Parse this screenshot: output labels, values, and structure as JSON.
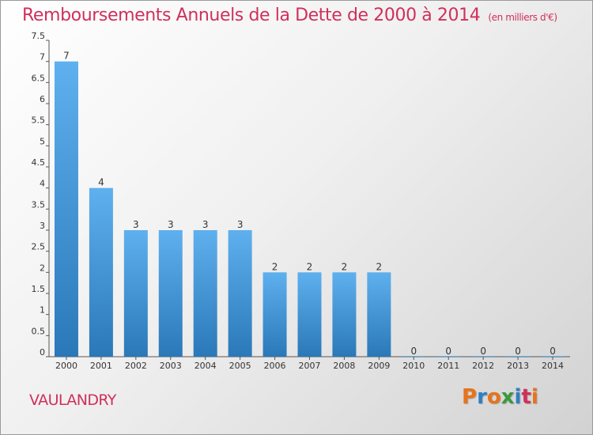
{
  "title": "Remboursements Annuels de la Dette de 2000 à 2014",
  "unit_note": "(en milliers d'€)",
  "commune": "VAULANDRY",
  "logo": {
    "letters": [
      "P",
      "r",
      "o",
      "x",
      "i",
      "t",
      "i"
    ],
    "colors": [
      "#e8731a",
      "#2e7fc4",
      "#e8731a",
      "#3a9a3a",
      "#2e7fc4",
      "#d0305a",
      "#e8731a"
    ]
  },
  "colors": {
    "title": "#d0305a",
    "bar_top": "#5fb0ee",
    "bar_bottom": "#2a78b8",
    "axis": "#555555"
  },
  "chart_data": {
    "type": "bar",
    "title": "Remboursements Annuels de la Dette de 2000 à 2014",
    "subtitle": "(en milliers d'€)",
    "categories": [
      "2000",
      "2001",
      "2002",
      "2003",
      "2004",
      "2005",
      "2006",
      "2007",
      "2008",
      "2009",
      "2010",
      "2011",
      "2012",
      "2013",
      "2014"
    ],
    "values": [
      7,
      4,
      3,
      3,
      3,
      3,
      2,
      2,
      2,
      2,
      0,
      0,
      0,
      0,
      0
    ],
    "value_labels": [
      "7",
      "4",
      "3",
      "3",
      "3",
      "3",
      "2",
      "2",
      "2",
      "2",
      "0",
      "0",
      "0",
      "0",
      "0"
    ],
    "y_ticks": [
      "0",
      "0.5",
      "1",
      "1.5",
      "2",
      "2.5",
      "3",
      "3.5",
      "4",
      "4.5",
      "5",
      "5.5",
      "6",
      "6.5",
      "7",
      "7.5"
    ],
    "ylim": [
      0,
      7.5
    ],
    "grid": false,
    "legend": "none"
  }
}
